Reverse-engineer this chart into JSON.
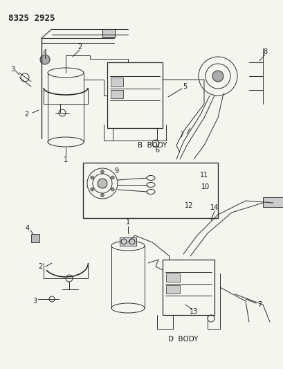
{
  "title": "8325 2925",
  "background_color": "#f5f5f0",
  "line_color": "#2a2a2a",
  "text_color": "#1a1a1a",
  "title_fontsize": 9,
  "label_fontsize": 7,
  "body_label_fontsize": 7.5,
  "b_body_label": "B  BODY",
  "d_body_label": "D  BODY"
}
